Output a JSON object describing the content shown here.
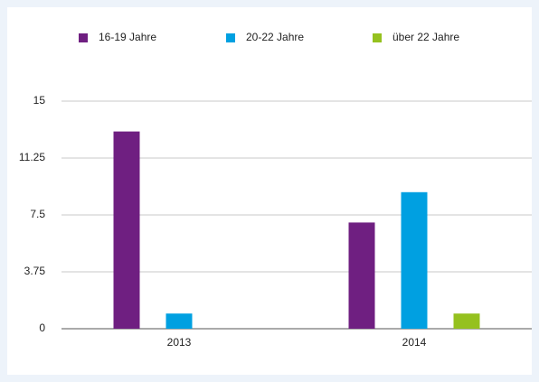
{
  "chart_data": {
    "type": "bar",
    "categories": [
      "2013",
      "2014"
    ],
    "series": [
      {
        "name": "16-19 Jahre",
        "color": "#6f1f81",
        "values": [
          13,
          7
        ]
      },
      {
        "name": "20-22 Jahre",
        "color": "#00a0e1",
        "values": [
          1,
          9
        ]
      },
      {
        "name": "über 22 Jahre",
        "color": "#95c11f",
        "values": [
          0,
          1
        ]
      }
    ],
    "ylim": [
      0,
      15
    ],
    "yticks": [
      0,
      3.75,
      7.5,
      11.25,
      15
    ],
    "grid": true,
    "legend": "top"
  }
}
